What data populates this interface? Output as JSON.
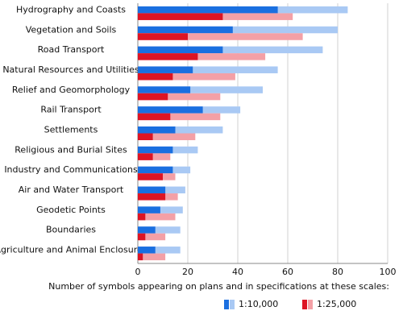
{
  "chart_data": {
    "type": "bar",
    "orientation": "horizontal",
    "x_label": "Number of symbols appearing on plans and in specifications at these scales:",
    "categories": [
      "Hydrography and Coasts",
      "Vegetation and Soils",
      "Road Transport",
      "Natural Resources and Utilities",
      "Relief and Geomorphology",
      "Rail Transport",
      "Settlements",
      "Religious and Burial Sites",
      "Industry and Communications",
      "Air and Water Transport",
      "Geodetic Points",
      "Boundaries",
      "Agriculture and Animal Enclosures"
    ],
    "series": [
      {
        "name": "1:10,000",
        "color": "#1a6fe0",
        "light_color": "#a9c9f4",
        "values": [
          56,
          38,
          34,
          22,
          21,
          26,
          15,
          14,
          14,
          11,
          9,
          7,
          7
        ],
        "light_values": [
          84,
          80,
          74,
          56,
          50,
          41,
          34,
          24,
          21,
          19,
          18,
          17,
          17
        ]
      },
      {
        "name": "1:25,000",
        "color": "#dd1424",
        "light_color": "#f4a0a6",
        "values": [
          34,
          20,
          24,
          14,
          12,
          13,
          6,
          6,
          10,
          11,
          3,
          3,
          2
        ],
        "light_values": [
          62,
          66,
          51,
          39,
          33,
          33,
          23,
          13,
          15,
          16,
          15,
          11,
          11
        ]
      }
    ],
    "xlim": [
      0,
      100
    ],
    "xticks": [
      0,
      20,
      40,
      60,
      80,
      100
    ],
    "grid": true
  }
}
